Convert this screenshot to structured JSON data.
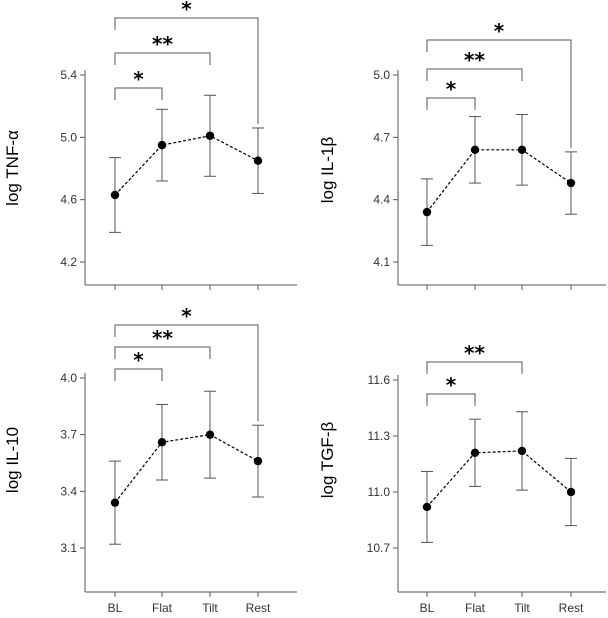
{
  "chart_data": [
    {
      "type": "line",
      "ylabel": "log  TNF-α",
      "categories": [
        "BL",
        "Flat",
        "Tilt",
        "Rest"
      ],
      "yticks": [
        "4.2",
        "4.6",
        "5.0",
        "5.4"
      ],
      "ylim": [
        4.2,
        5.4
      ],
      "series": [
        {
          "values": [
            4.63,
            4.95,
            5.01,
            4.85
          ],
          "lower": [
            4.39,
            4.72,
            4.75,
            4.64
          ],
          "upper": [
            4.87,
            5.18,
            5.27,
            5.06
          ]
        }
      ],
      "brackets": [
        {
          "from": "BL",
          "to": "Flat",
          "label": "*"
        },
        {
          "from": "BL",
          "to": "Tilt",
          "label": "**"
        },
        {
          "from": "BL",
          "to": "Rest",
          "label": "*"
        }
      ],
      "show_xticklabels": false
    },
    {
      "type": "line",
      "ylabel": "log IL-1β",
      "categories": [
        "BL",
        "Flat",
        "Tilt",
        "Rest"
      ],
      "yticks": [
        "4.1",
        "4.4",
        "4.7",
        "5.0"
      ],
      "ylim": [
        4.1,
        5.0
      ],
      "series": [
        {
          "values": [
            4.34,
            4.64,
            4.64,
            4.48
          ],
          "lower": [
            4.18,
            4.48,
            4.47,
            4.33
          ],
          "upper": [
            4.5,
            4.8,
            4.81,
            4.63
          ]
        }
      ],
      "brackets": [
        {
          "from": "BL",
          "to": "Flat",
          "label": "*"
        },
        {
          "from": "BL",
          "to": "Tilt",
          "label": "**"
        },
        {
          "from": "BL",
          "to": "Rest",
          "label": "*"
        }
      ],
      "show_xticklabels": false
    },
    {
      "type": "line",
      "ylabel": "log IL-10",
      "categories": [
        "BL",
        "Flat",
        "Tilt",
        "Rest"
      ],
      "yticks": [
        "3.1",
        "3.4",
        "3.7",
        "4.0"
      ],
      "ylim": [
        3.1,
        4.0
      ],
      "series": [
        {
          "values": [
            3.34,
            3.66,
            3.7,
            3.56
          ],
          "lower": [
            3.12,
            3.46,
            3.47,
            3.37
          ],
          "upper": [
            3.56,
            3.86,
            3.93,
            3.75
          ]
        }
      ],
      "brackets": [
        {
          "from": "BL",
          "to": "Flat",
          "label": "*"
        },
        {
          "from": "BL",
          "to": "Tilt",
          "label": "**"
        },
        {
          "from": "BL",
          "to": "Rest",
          "label": "*"
        }
      ],
      "show_xticklabels": true
    },
    {
      "type": "line",
      "ylabel": "log TGF-β",
      "categories": [
        "BL",
        "Flat",
        "Tilt",
        "Rest"
      ],
      "yticks": [
        "10.7",
        "11.0",
        "11.3",
        "11.6"
      ],
      "ylim": [
        10.7,
        11.6
      ],
      "series": [
        {
          "values": [
            10.92,
            11.21,
            11.22,
            11.0
          ],
          "lower": [
            10.73,
            11.03,
            11.01,
            10.82
          ],
          "upper": [
            11.11,
            11.39,
            11.43,
            11.18
          ]
        }
      ],
      "brackets": [
        {
          "from": "BL",
          "to": "Flat",
          "label": "*"
        },
        {
          "from": "BL",
          "to": "Tilt",
          "label": "**"
        }
      ],
      "show_xticklabels": true
    }
  ],
  "colors": {
    "marker": "#000000",
    "line": "#000000",
    "axis": "#555555",
    "bracket": "#555555"
  }
}
